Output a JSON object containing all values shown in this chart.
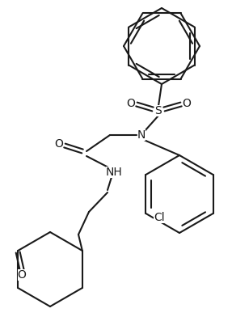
{
  "bg_color": "#ffffff",
  "line_color": "#1a1a1a",
  "line_width": 1.5,
  "figsize": [
    2.87,
    3.92
  ],
  "dpi": 100,
  "xlim": [
    0,
    287
  ],
  "ylim": [
    0,
    392
  ]
}
